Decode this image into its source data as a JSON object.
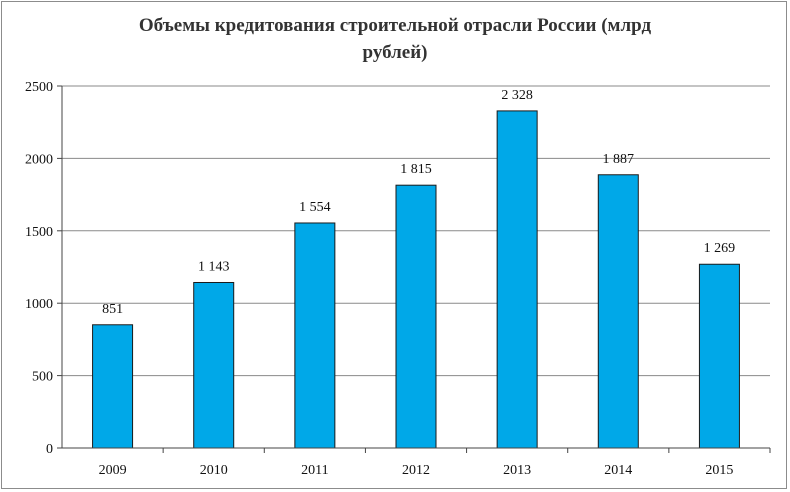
{
  "chart_data": {
    "type": "bar",
    "title_lines": [
      "Объемы кредитования строительной отрасли России (млрд",
      "рублей)"
    ],
    "xlabel": "",
    "ylabel": "",
    "categories": [
      "2009",
      "2010",
      "2011",
      "2012",
      "2013",
      "2014",
      "2015"
    ],
    "values": [
      851,
      1143,
      1554,
      1815,
      2328,
      1887,
      1269
    ],
    "data_labels": [
      "851",
      "1 143",
      "1 554",
      "1 815",
      "2 328",
      "1 887",
      "1 269"
    ],
    "yticks": [
      0,
      500,
      1000,
      1500,
      2000,
      2500
    ],
    "ylim": [
      0,
      2500
    ],
    "grid": true,
    "legend": "none",
    "bar_color": "#00a8e8",
    "bar_border_color": "#1a1a1a"
  }
}
